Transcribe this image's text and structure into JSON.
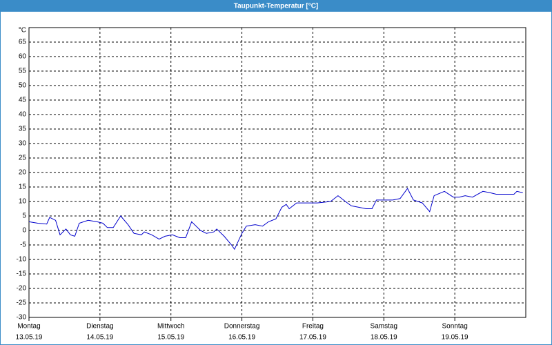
{
  "chart_data": {
    "type": "line",
    "title": "Taupunkt-Temperatur [°C]",
    "y_label": "°C",
    "xlim": [
      0,
      168
    ],
    "ylim": [
      -30,
      70
    ],
    "xticks": [
      {
        "value": 0,
        "label": "Montag"
      },
      {
        "value": 24,
        "label": "Dienstag"
      },
      {
        "value": 48,
        "label": "Mittwoch"
      },
      {
        "value": 72,
        "label": "Donnerstag"
      },
      {
        "value": 96,
        "label": "Freitag"
      },
      {
        "value": 120,
        "label": "Samstag"
      },
      {
        "value": 144,
        "label": "Sonntag"
      }
    ],
    "xtick_dates": [
      "13.05.19",
      "14.05.19",
      "15.05.19",
      "16.05.19",
      "17.05.19",
      "18.05.19",
      "19.05.19"
    ],
    "yticks": [
      -30,
      -25,
      -20,
      -15,
      -10,
      -5,
      0,
      5,
      10,
      15,
      20,
      25,
      30,
      35,
      40,
      45,
      50,
      55,
      60,
      65
    ],
    "grid": true,
    "x": [
      0,
      3,
      6,
      7,
      9,
      10.5,
      12.5,
      14,
      15.5,
      17,
      20,
      23,
      25,
      26.5,
      28.5,
      31,
      33.5,
      35.5,
      38,
      39,
      41.5,
      44,
      46,
      48.5,
      51,
      53,
      55,
      58,
      60,
      62.5,
      63.5,
      66,
      68.5,
      69.5,
      72,
      73.5,
      76.5,
      79,
      81,
      83.5,
      85.5,
      87,
      88,
      90.5,
      93,
      97.5,
      102,
      104.5,
      107,
      109,
      114,
      116,
      117.5,
      123,
      125.5,
      128,
      130,
      133,
      135.5,
      137,
      140.5,
      143.5,
      145.5,
      147.5,
      150,
      153.5,
      156,
      158,
      161.5,
      164,
      165,
      167
    ],
    "series": [
      {
        "color": "#0000cc",
        "values": [
          3,
          2.5,
          2.2,
          4.5,
          3.5,
          -1.5,
          0.5,
          -1.5,
          -2,
          2.5,
          3.5,
          3,
          2.5,
          1,
          1,
          5,
          2,
          -1,
          -1.5,
          -0.5,
          -1.5,
          -3,
          -2,
          -1.5,
          -2.5,
          -2.5,
          3,
          0,
          -1,
          -0.5,
          0.5,
          -2,
          -5,
          -6.5,
          -1,
          1.5,
          2,
          1.5,
          3,
          4,
          8,
          9,
          7.5,
          9.5,
          9.5,
          9.5,
          10,
          12,
          10,
          8.5,
          7.5,
          7.5,
          10.5,
          10.5,
          11,
          14.5,
          10.5,
          9.5,
          6.5,
          12,
          13.5,
          11.5,
          11.5,
          12,
          11.5,
          13.5,
          13,
          12.5,
          12.5,
          12.5,
          13.5,
          13
        ]
      }
    ]
  }
}
